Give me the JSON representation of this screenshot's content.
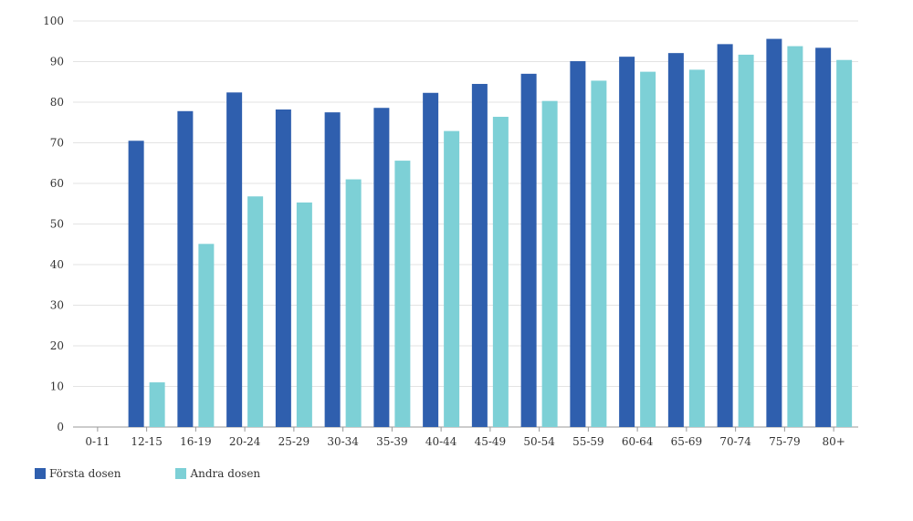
{
  "chart_data": {
    "type": "bar",
    "categories": [
      "0-11",
      "12-15",
      "16-19",
      "20-24",
      "25-29",
      "30-34",
      "35-39",
      "40-44",
      "45-49",
      "50-54",
      "55-59",
      "60-64",
      "65-69",
      "70-74",
      "75-79",
      "80+"
    ],
    "series": [
      {
        "name": "Första dosen",
        "color": "#2f5fae",
        "values": [
          0,
          70.5,
          77.8,
          82.4,
          78.2,
          77.5,
          78.6,
          82.3,
          84.5,
          87.0,
          90.1,
          91.2,
          92.1,
          94.3,
          95.6,
          93.4
        ]
      },
      {
        "name": "Andra dosen",
        "color": "#7dd0d6",
        "values": [
          0,
          11.0,
          45.1,
          56.8,
          55.3,
          61.0,
          65.6,
          72.9,
          76.4,
          80.3,
          85.3,
          87.5,
          88.0,
          91.7,
          93.8,
          90.4
        ]
      }
    ],
    "yticks": [
      "0",
      "10",
      "20",
      "30",
      "40",
      "50",
      "60",
      "70",
      "80",
      "90",
      "100"
    ],
    "ylim": [
      0,
      100
    ],
    "grid": true,
    "legend": "bottom-left"
  }
}
